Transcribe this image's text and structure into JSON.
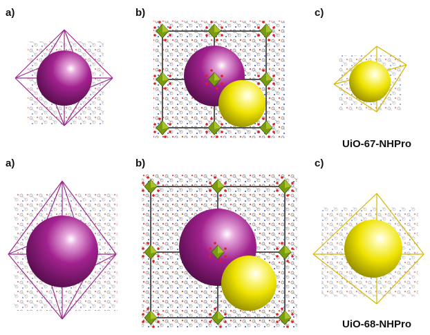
{
  "rows": [
    {
      "labels": [
        "a)",
        "b)",
        "c)"
      ],
      "material": "UiO-67-NHPro"
    },
    {
      "labels": [
        "a)",
        "b)",
        "c)"
      ],
      "material": "UiO-68-NHPro"
    }
  ],
  "colors": {
    "octahedral_cage": "#8a1a7a",
    "tetrahedral_cage": "#f0e400",
    "zr_cluster": "#7a9a10",
    "oxygen": "#e02020",
    "nitrogen": "#3040c0",
    "carbon": "#888888",
    "frame_octa": "#9b2a8f",
    "frame_tetra": "#d4b800"
  }
}
